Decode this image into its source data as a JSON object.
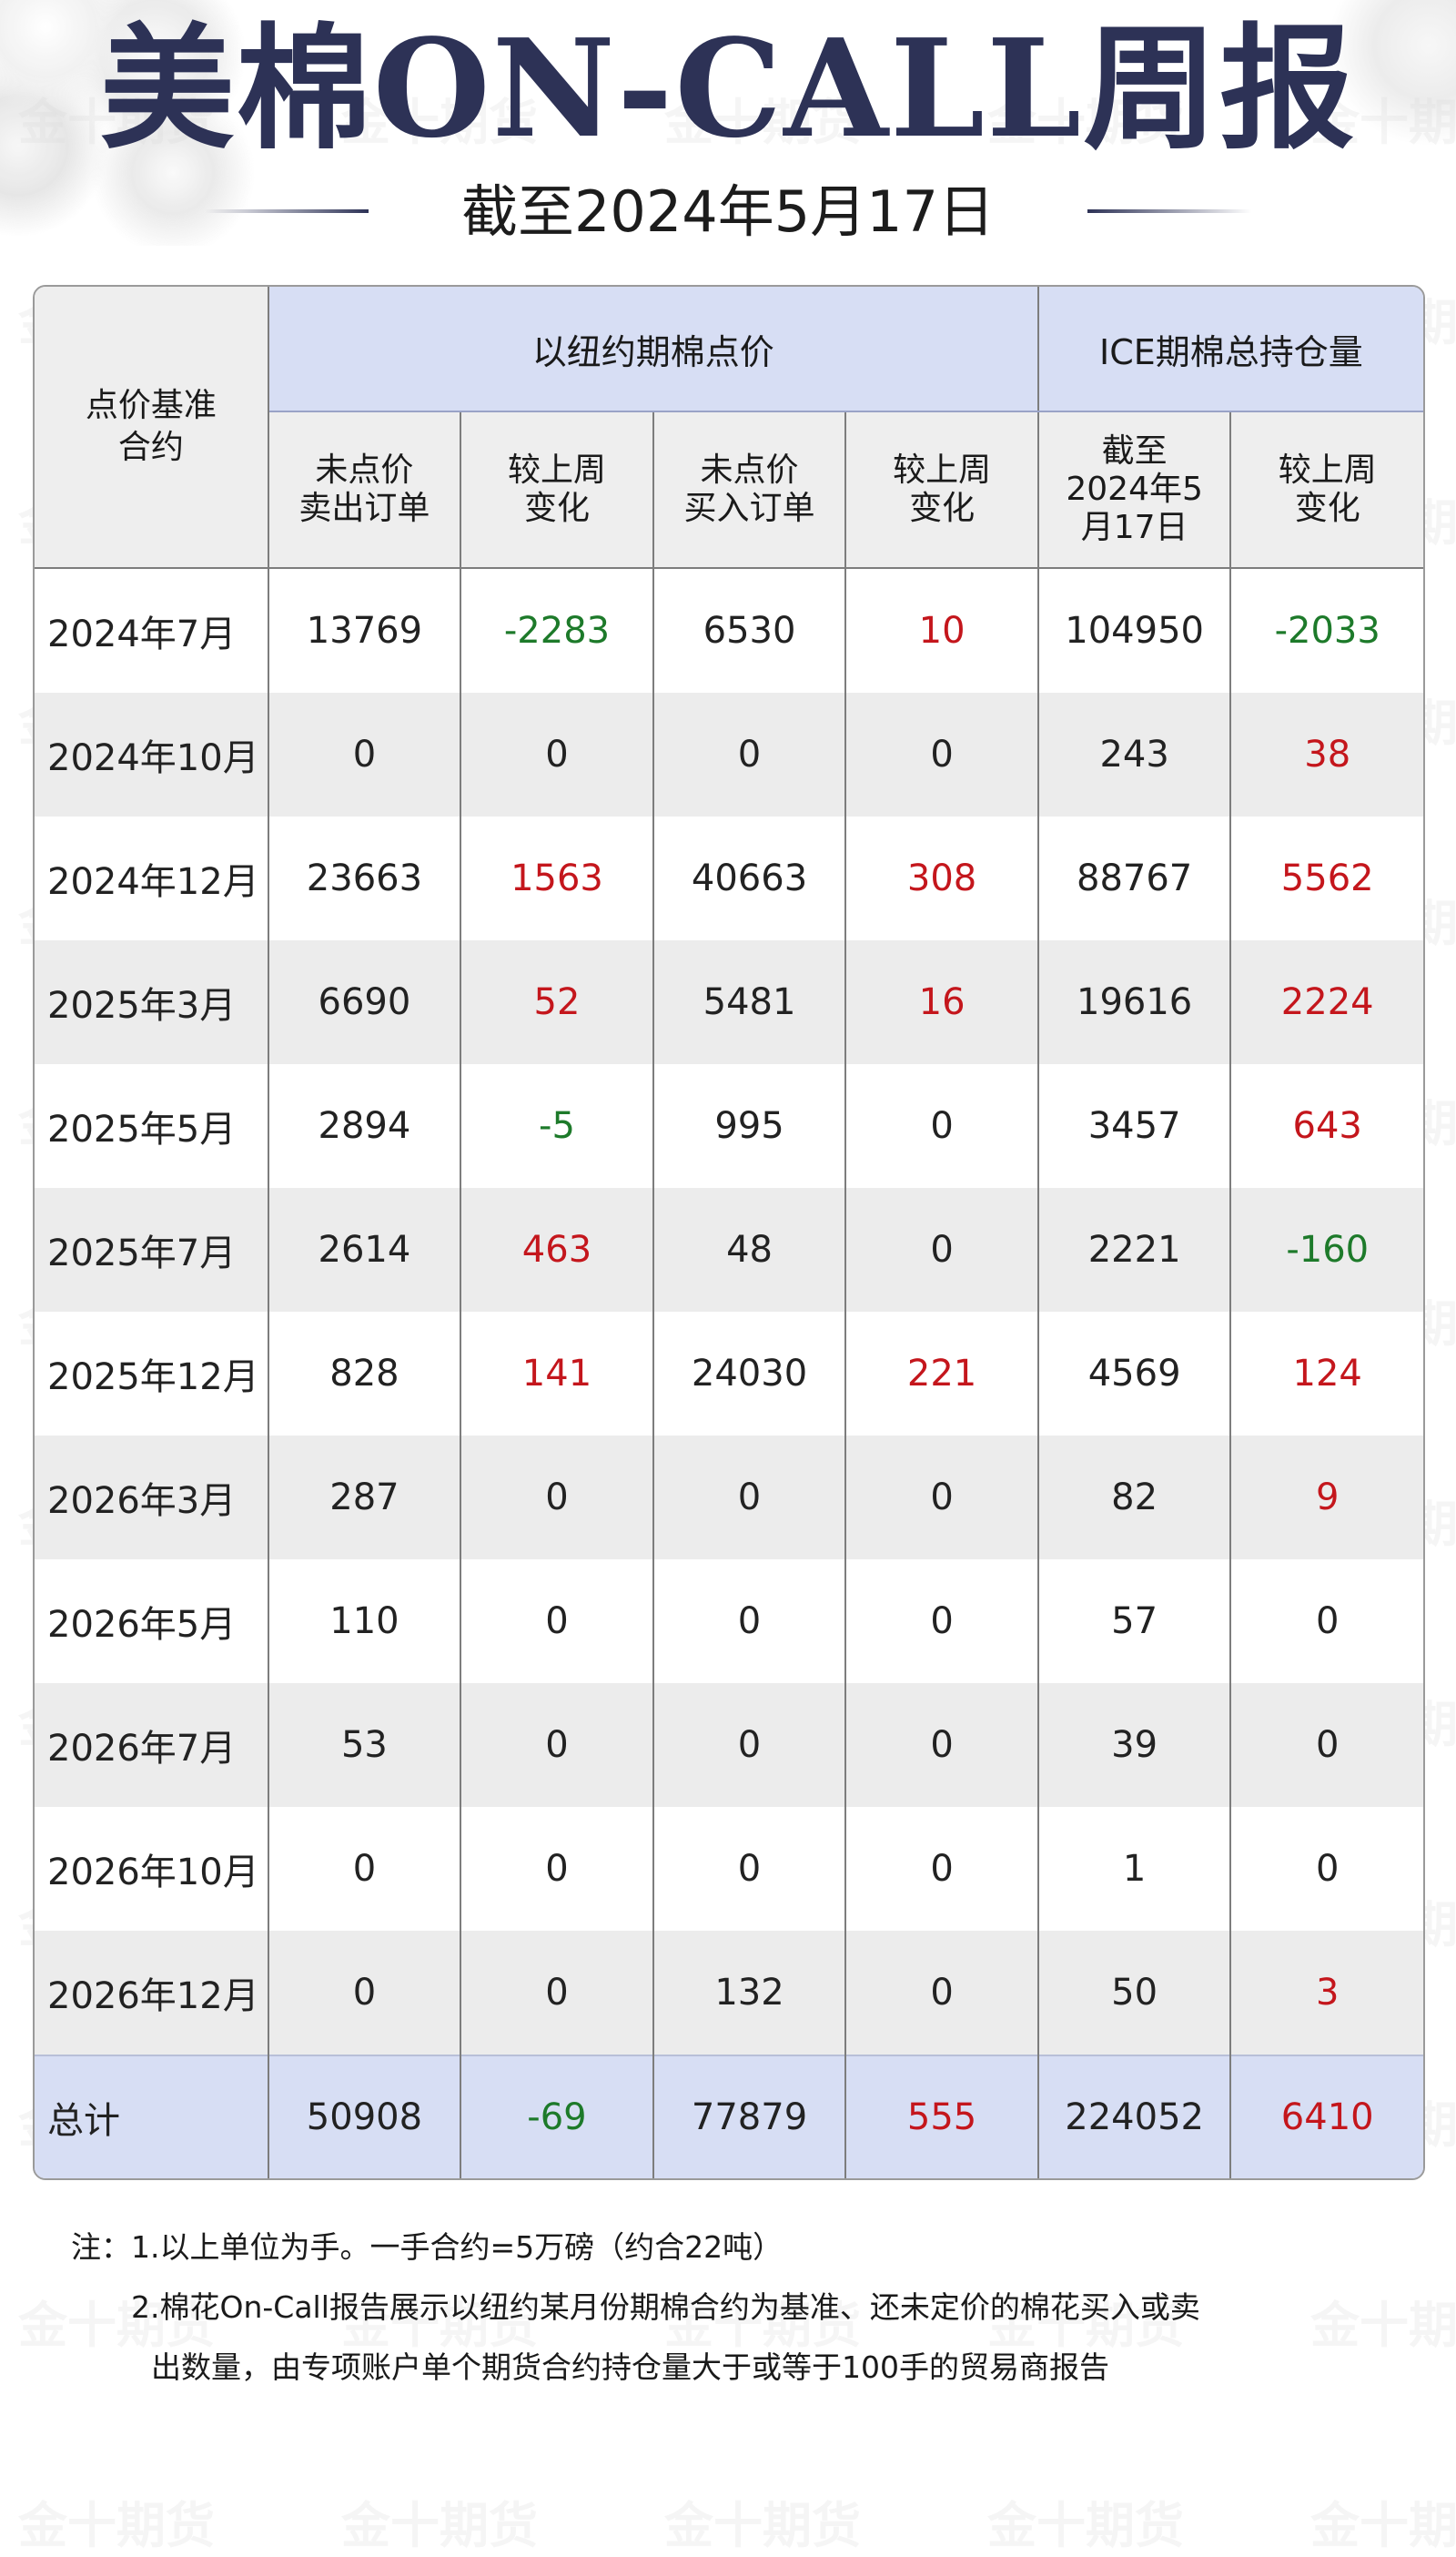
{
  "header": {
    "title": "美棉ON-CALL周报",
    "subtitle": "截至2024年5月17日"
  },
  "table": {
    "corner_header": "点价基准\n合约",
    "group_headers": [
      "以纽约期棉点价",
      "ICE期棉总持仓量"
    ],
    "sub_headers": [
      "未点价\n卖出订单",
      "较上周\n变化",
      "未点价\n买入订单",
      "较上周\n变化",
      "截至\n2024年5\n月17日",
      "较上周\n变化"
    ],
    "rows": [
      {
        "contract": "2024年7月",
        "cells": [
          "13769",
          "-2283",
          "6530",
          "10",
          "104950",
          "-2033"
        ],
        "colors": [
          "",
          "green",
          "",
          "red",
          "",
          "green"
        ]
      },
      {
        "contract": "2024年10月",
        "cells": [
          "0",
          "0",
          "0",
          "0",
          "243",
          "38"
        ],
        "colors": [
          "",
          "",
          "",
          "",
          "",
          "red"
        ]
      },
      {
        "contract": "2024年12月",
        "cells": [
          "23663",
          "1563",
          "40663",
          "308",
          "88767",
          "5562"
        ],
        "colors": [
          "",
          "red",
          "",
          "red",
          "",
          "red"
        ]
      },
      {
        "contract": "2025年3月",
        "cells": [
          "6690",
          "52",
          "5481",
          "16",
          "19616",
          "2224"
        ],
        "colors": [
          "",
          "red",
          "",
          "red",
          "",
          "red"
        ]
      },
      {
        "contract": "2025年5月",
        "cells": [
          "2894",
          "-5",
          "995",
          "0",
          "3457",
          "643"
        ],
        "colors": [
          "",
          "green",
          "",
          "",
          "",
          "red"
        ]
      },
      {
        "contract": "2025年7月",
        "cells": [
          "2614",
          "463",
          "48",
          "0",
          "2221",
          "-160"
        ],
        "colors": [
          "",
          "red",
          "",
          "",
          "",
          "green"
        ]
      },
      {
        "contract": "2025年12月",
        "cells": [
          "828",
          "141",
          "24030",
          "221",
          "4569",
          "124"
        ],
        "colors": [
          "",
          "red",
          "",
          "red",
          "",
          "red"
        ]
      },
      {
        "contract": "2026年3月",
        "cells": [
          "287",
          "0",
          "0",
          "0",
          "82",
          "9"
        ],
        "colors": [
          "",
          "",
          "",
          "",
          "",
          "red"
        ]
      },
      {
        "contract": "2026年5月",
        "cells": [
          "110",
          "0",
          "0",
          "0",
          "57",
          "0"
        ],
        "colors": [
          "",
          "",
          "",
          "",
          "",
          ""
        ]
      },
      {
        "contract": "2026年7月",
        "cells": [
          "53",
          "0",
          "0",
          "0",
          "39",
          "0"
        ],
        "colors": [
          "",
          "",
          "",
          "",
          "",
          ""
        ]
      },
      {
        "contract": "2026年10月",
        "cells": [
          "0",
          "0",
          "0",
          "0",
          "1",
          "0"
        ],
        "colors": [
          "",
          "",
          "",
          "",
          "",
          ""
        ]
      },
      {
        "contract": "2026年12月",
        "cells": [
          "0",
          "0",
          "132",
          "0",
          "50",
          "3"
        ],
        "colors": [
          "",
          "",
          "",
          "",
          "",
          "red"
        ]
      }
    ],
    "total": {
      "contract": "总计",
      "cells": [
        "50908",
        "-69",
        "77879",
        "555",
        "224052",
        "6410"
      ],
      "colors": [
        "",
        "green",
        "",
        "red",
        "",
        "red"
      ]
    }
  },
  "notes": {
    "line1": "注：1.以上单位为手。一手合约=5万磅（约合22吨）",
    "line2": "2.棉花On-Call报告展示以纽约某月份期棉合约为基准、还未定价的棉花买入或卖",
    "line3": "出数量，由专项账户单个期货合约持仓量大于或等于100手的贸易商报告"
  },
  "watermark": "金十期货",
  "colors": {
    "title": "#2d3256",
    "header_blue": "#d7def4",
    "header_gray": "#eeeeee",
    "increase": "#c4161c",
    "decrease": "#1d7a2a"
  }
}
